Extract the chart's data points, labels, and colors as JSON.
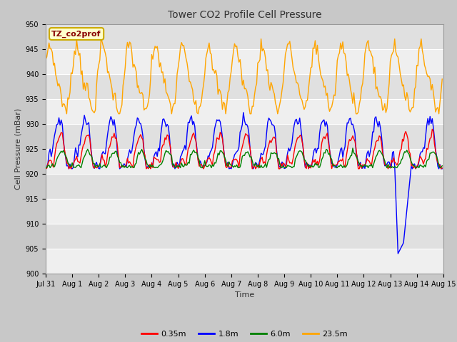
{
  "title": "Tower CO2 Profile Cell Pressure",
  "xlabel": "Time",
  "ylabel": "Cell Pressure (mBar)",
  "ylim": [
    900,
    950
  ],
  "yticks": [
    900,
    905,
    910,
    915,
    920,
    925,
    930,
    935,
    940,
    945,
    950
  ],
  "legend_labels": [
    "0.35m",
    "1.8m",
    "6.0m",
    "23.5m"
  ],
  "legend_colors": [
    "red",
    "blue",
    "green",
    "orange"
  ],
  "annotation_text": "TZ_co2prof",
  "annotation_bg": "#ffffcc",
  "annotation_border": "#ccaa00",
  "fig_bg": "#c8c8c8",
  "plot_bg": "#e0e0e0",
  "line_width": 1.0,
  "base_pressure": 921.5,
  "spike_day": 13.3,
  "spike_low": 904.0
}
